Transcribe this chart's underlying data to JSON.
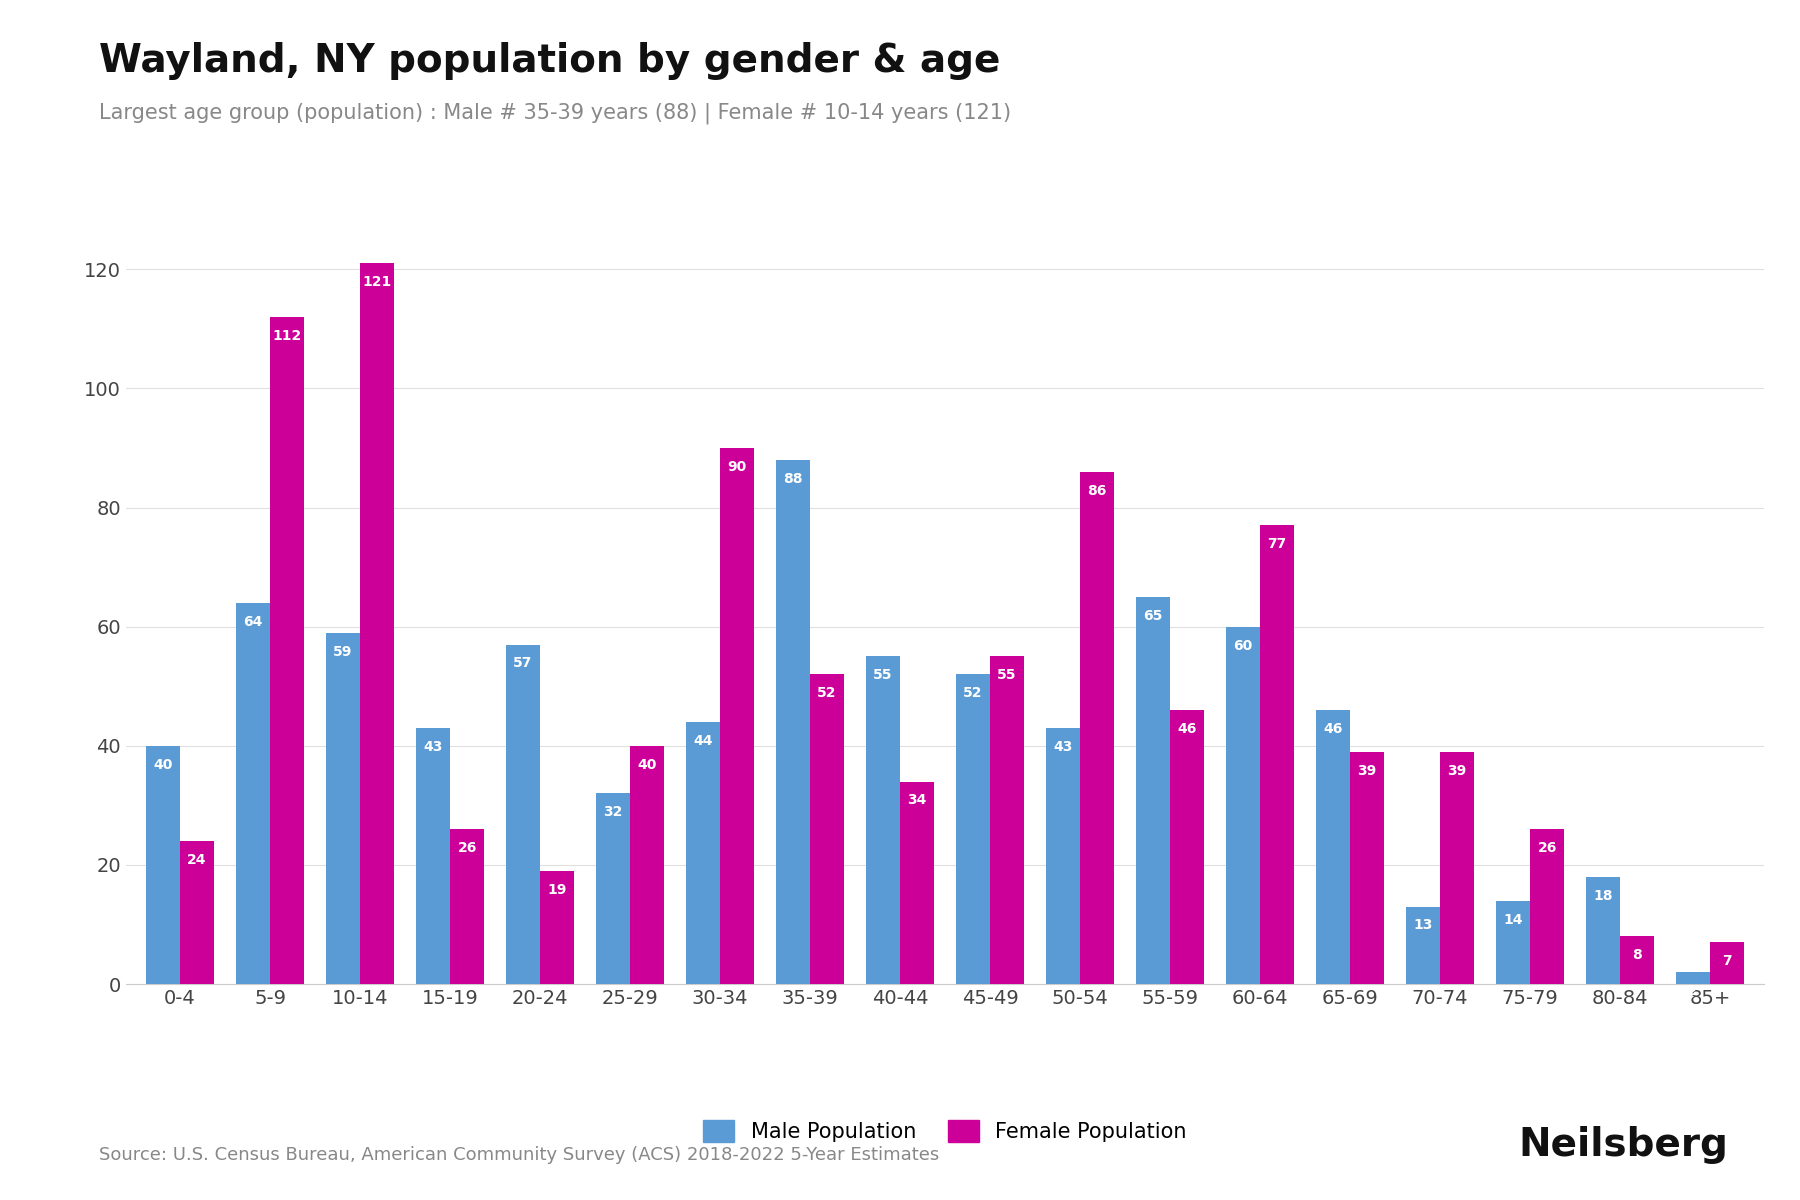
{
  "title": "Wayland, NY population by gender & age",
  "subtitle": "Largest age group (population) : Male # 35-39 years (88) | Female # 10-14 years (121)",
  "source": "Source: U.S. Census Bureau, American Community Survey (ACS) 2018-2022 5-Year Estimates",
  "age_groups": [
    "0-4",
    "5-9",
    "10-14",
    "15-19",
    "20-24",
    "25-29",
    "30-34",
    "35-39",
    "40-44",
    "45-49",
    "50-54",
    "55-59",
    "60-64",
    "65-69",
    "70-74",
    "75-79",
    "80-84",
    "85+"
  ],
  "male": [
    40,
    64,
    59,
    43,
    57,
    32,
    44,
    88,
    55,
    52,
    43,
    65,
    60,
    46,
    13,
    14,
    18,
    2
  ],
  "female": [
    24,
    112,
    121,
    26,
    19,
    40,
    90,
    52,
    34,
    55,
    86,
    46,
    77,
    39,
    39,
    26,
    8,
    7
  ],
  "male_color": "#5B9BD5",
  "female_color": "#CC0099",
  "bar_width": 0.38,
  "ylim": [
    0,
    135
  ],
  "yticks": [
    0,
    20,
    40,
    60,
    80,
    100,
    120
  ],
  "legend_male": "Male Population",
  "legend_female": "Female Population",
  "title_fontsize": 28,
  "subtitle_fontsize": 15,
  "source_fontsize": 13,
  "tick_fontsize": 14,
  "label_fontsize": 10,
  "neilsberg_fontsize": 28,
  "background_color": "#ffffff"
}
